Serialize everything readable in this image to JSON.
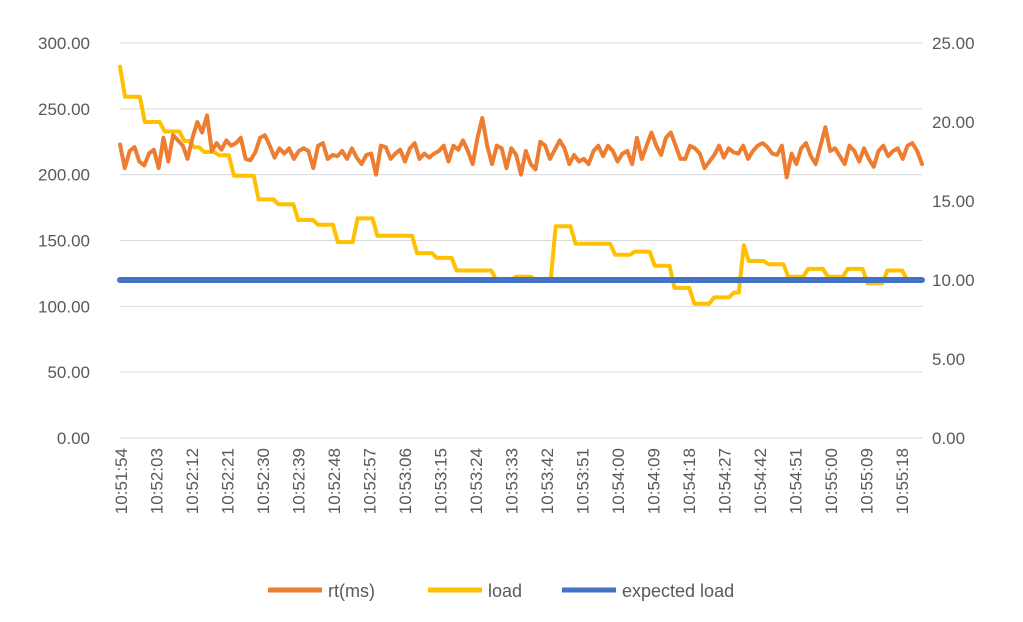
{
  "chart_data": {
    "type": "line",
    "title": "",
    "xlabel": "",
    "ylabel": "",
    "y_left": {
      "lim": [
        0,
        300
      ],
      "tick_labels": [
        "0.00",
        "50.00",
        "100.00",
        "150.00",
        "200.00",
        "250.00",
        "300.00"
      ]
    },
    "y_right": {
      "lim": [
        0,
        25
      ],
      "tick_labels": [
        "0.00",
        "5.00",
        "10.00",
        "15.00",
        "20.00",
        "25.00"
      ]
    },
    "x_tick_labels": [
      "10:51:54",
      "10:52:03",
      "10:52:12",
      "10:52:21",
      "10:52:30",
      "10:52:39",
      "10:52:48",
      "10:52:57",
      "10:53:06",
      "10:53:15",
      "10:53:24",
      "10:53:33",
      "10:53:42",
      "10:53:51",
      "10:54:00",
      "10:54:09",
      "10:54:18",
      "10:54:27",
      "10:54:42",
      "10:54:51",
      "10:55:00",
      "10:55:09",
      "10:55:18"
    ],
    "gridlines": true,
    "legend_position": "bottom",
    "series": [
      {
        "name": "rt(ms)",
        "axis": "left",
        "color": "#ED7D31",
        "values": [
          223,
          205,
          218,
          221,
          210,
          207,
          216,
          219,
          205,
          228,
          210,
          230,
          226,
          222,
          212,
          228,
          240,
          232,
          245,
          218,
          224,
          219,
          226,
          222,
          224,
          228,
          212,
          211,
          217,
          228,
          230,
          222,
          213,
          220,
          216,
          220,
          212,
          218,
          220,
          218,
          205,
          222,
          224,
          212,
          215,
          214,
          218,
          212,
          220,
          213,
          208,
          215,
          216,
          200,
          222,
          221,
          212,
          216,
          219,
          210,
          220,
          224,
          212,
          216,
          213,
          216,
          218,
          222,
          210,
          222,
          219,
          226,
          218,
          208,
          228,
          243,
          222,
          208,
          222,
          220,
          205,
          220,
          215,
          200,
          218,
          208,
          204,
          225,
          222,
          212,
          219,
          226,
          220,
          208,
          215,
          210,
          212,
          208,
          218,
          222,
          214,
          222,
          218,
          210,
          216,
          218,
          208,
          228,
          212,
          222,
          232,
          222,
          215,
          228,
          232,
          222,
          212,
          212,
          222,
          220,
          216,
          205,
          210,
          215,
          222,
          213,
          220,
          217,
          216,
          222,
          212,
          218,
          222,
          224,
          221,
          216,
          215,
          222,
          198,
          216,
          208,
          220,
          224,
          214,
          208,
          222,
          236,
          218,
          220,
          214,
          208,
          222,
          218,
          210,
          220,
          212,
          206,
          218,
          222,
          214,
          218,
          220,
          212,
          222,
          224,
          218,
          208
        ]
      },
      {
        "name": "load",
        "axis": "right",
        "color": "#FFC000",
        "values": [
          23.5,
          21.6,
          21.6,
          21.6,
          21.6,
          20.0,
          20.0,
          20.0,
          20.0,
          19.4,
          19.4,
          19.4,
          19.4,
          18.8,
          18.8,
          18.4,
          18.4,
          18.1,
          18.1,
          18.1,
          17.9,
          17.9,
          17.9,
          16.6,
          16.6,
          16.6,
          16.6,
          16.6,
          15.1,
          15.1,
          15.1,
          15.1,
          14.8,
          14.8,
          14.8,
          14.8,
          13.8,
          13.8,
          13.8,
          13.8,
          13.5,
          13.5,
          13.5,
          13.5,
          12.4,
          12.4,
          12.4,
          12.4,
          13.9,
          13.9,
          13.9,
          13.9,
          12.8,
          12.8,
          12.8,
          12.8,
          12.8,
          12.8,
          12.8,
          12.8,
          11.7,
          11.7,
          11.7,
          11.7,
          11.4,
          11.4,
          11.4,
          11.4,
          10.6,
          10.6,
          10.6,
          10.6,
          10.6,
          10.6,
          10.6,
          10.6,
          10.0,
          10.0,
          10.0,
          10.0,
          10.2,
          10.2,
          10.2,
          10.2,
          10.0,
          10.0,
          10.0,
          10.0,
          13.4,
          13.4,
          13.4,
          13.4,
          12.3,
          12.3,
          12.3,
          12.3,
          12.3,
          12.3,
          12.3,
          12.3,
          11.6,
          11.6,
          11.6,
          11.6,
          11.8,
          11.8,
          11.8,
          11.8,
          10.9,
          10.9,
          10.9,
          10.9,
          9.5,
          9.5,
          9.5,
          9.5,
          8.5,
          8.5,
          8.5,
          8.5,
          8.9,
          8.9,
          8.9,
          8.9,
          9.2,
          9.2,
          12.2,
          11.2,
          11.2,
          11.2,
          11.2,
          11.0,
          11.0,
          11.0,
          11.0,
          10.2,
          10.2,
          10.2,
          10.2,
          10.7,
          10.7,
          10.7,
          10.7,
          10.2,
          10.2,
          10.2,
          10.2,
          10.7,
          10.7,
          10.7,
          10.7,
          9.8,
          9.8,
          9.8,
          9.8,
          10.6,
          10.6,
          10.6,
          10.6,
          10.0,
          10.0,
          10.0,
          10.0
        ]
      },
      {
        "name": "expected load",
        "axis": "right",
        "color": "#4472C4",
        "values": [
          10,
          10
        ]
      }
    ]
  }
}
